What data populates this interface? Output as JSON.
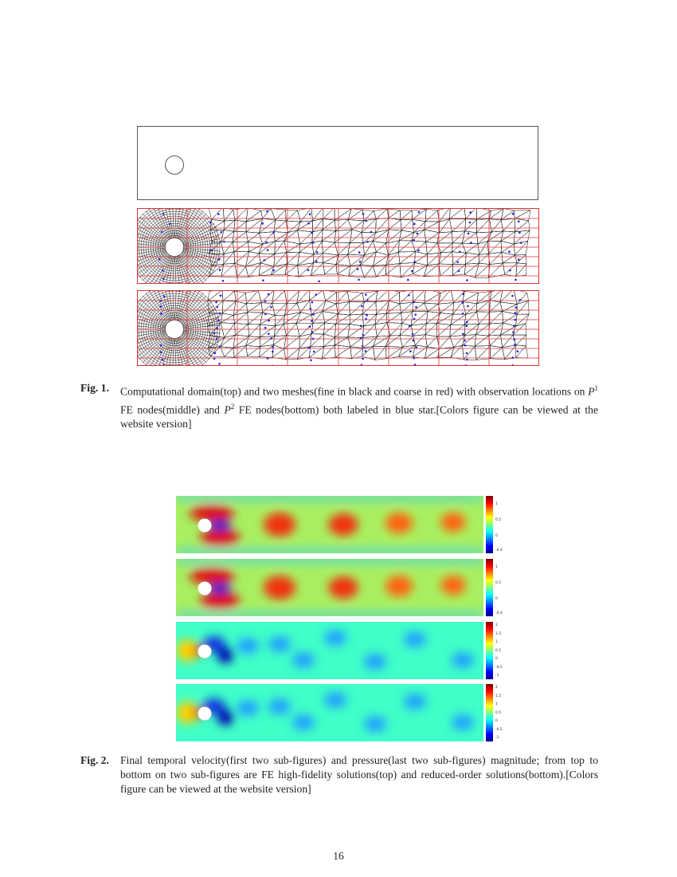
{
  "figure1": {
    "label": "Fig. 1.",
    "caption_parts": {
      "a": "Computational domain(top) and two meshes(fine in black and coarse in red) with observation locations on ",
      "p1": "P",
      "p1_sup": "1",
      "b": " FE nodes(middle) and ",
      "p2": "P",
      "p2_sup": "2",
      "c": " FE nodes(bottom) both labeled in blue star.[Colors figure can be viewed at the website version]"
    },
    "panels": [
      "computational-domain",
      "mesh-P1-observations",
      "mesh-P2-observations"
    ],
    "colors": {
      "fine_mesh": "#000000",
      "coarse_mesh": "#dd3333",
      "observations": "#2020e0"
    }
  },
  "figure2": {
    "label": "Fig. 2.",
    "caption": "Final temporal velocity(first two sub-figures) and pressure(last two sub-figures) magnitude; from top to bottom on two sub-figures are FE high-fidelity solutions(top) and reduced-order solutions(bottom).[Colors figure can be viewed at the website version]",
    "panels": [
      {
        "name": "velocity-high-fidelity",
        "ticks": [
          "1",
          "0.5",
          "0",
          "-0.4"
        ]
      },
      {
        "name": "velocity-reduced-order",
        "ticks": [
          "1",
          "0.5",
          "0",
          "-0.4"
        ]
      },
      {
        "name": "pressure-high-fidelity",
        "ticks": [
          "2",
          "1.5",
          "1",
          "0.5",
          "0",
          "-0.5",
          "-1"
        ]
      },
      {
        "name": "pressure-reduced-order",
        "ticks": [
          "2",
          "1.5",
          "1",
          "0.5",
          "0",
          "-0.5",
          "-1"
        ]
      }
    ]
  },
  "page_number": "16"
}
